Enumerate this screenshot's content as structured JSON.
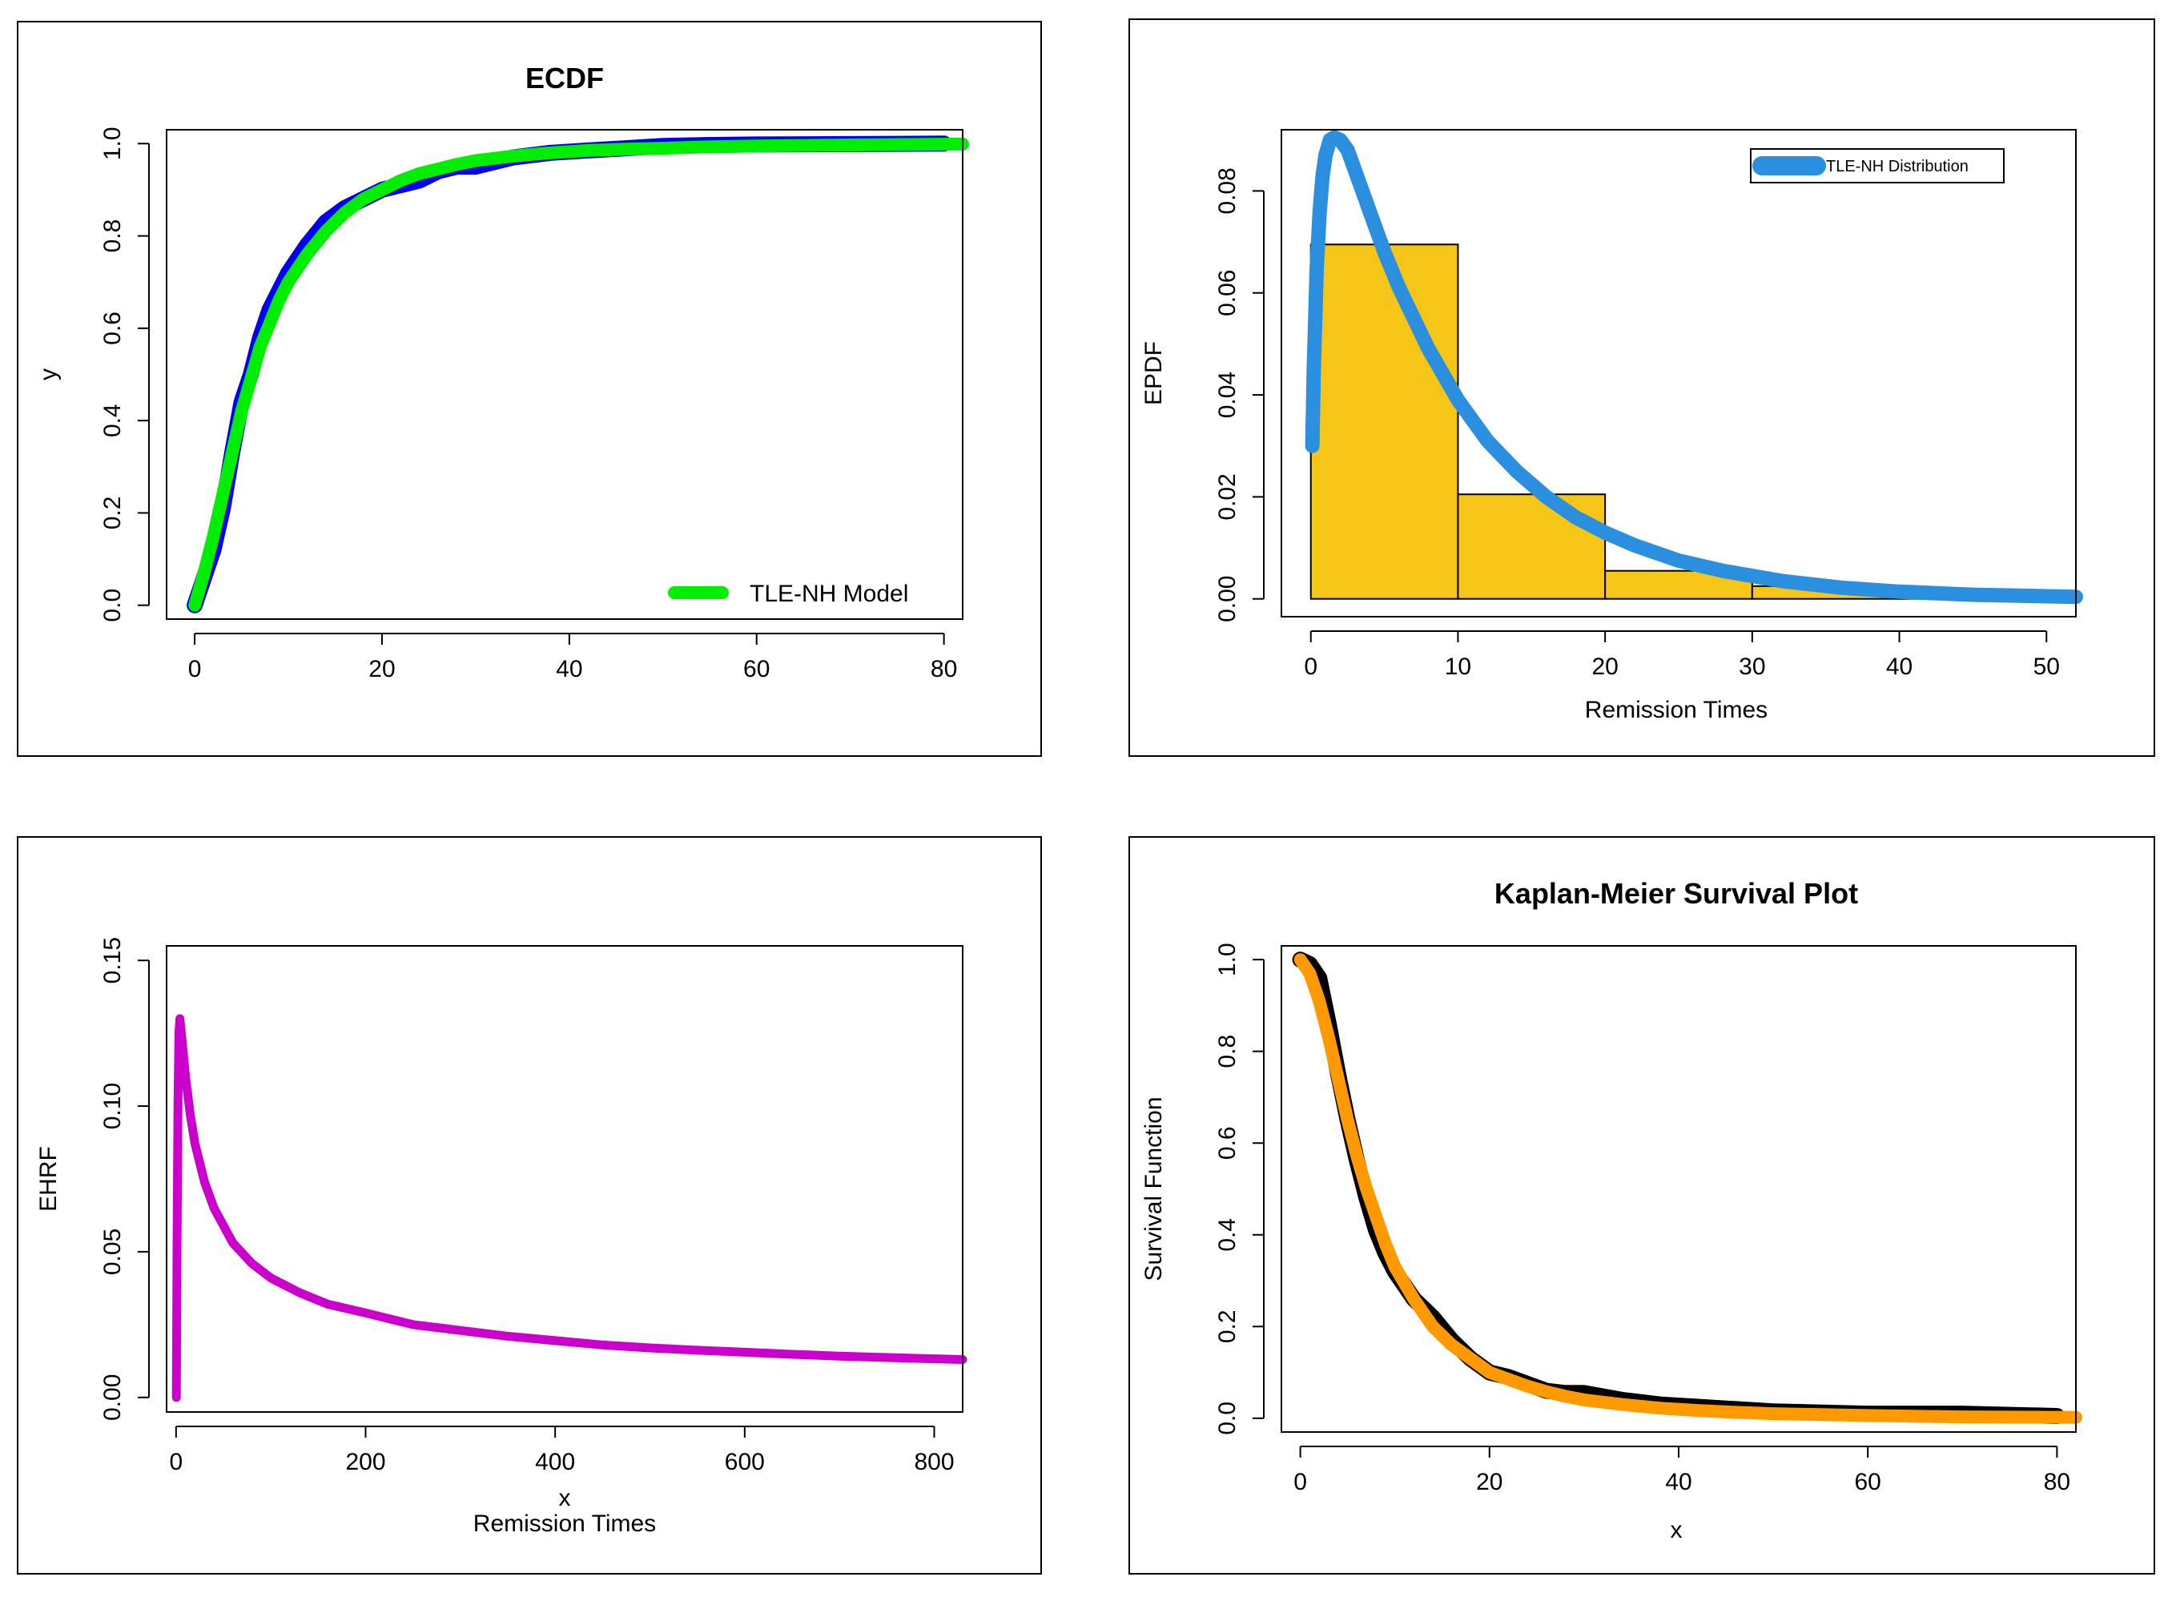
{
  "chart_data": [
    {
      "type": "line",
      "title": "ECDF",
      "xlabel": "",
      "ylabel": "y",
      "xlim": [
        -3,
        82
      ],
      "ylim": [
        -0.03,
        1.03
      ],
      "xticks": [
        0,
        20,
        40,
        60,
        80
      ],
      "yticks": [
        0.0,
        0.2,
        0.4,
        0.6,
        0.8,
        1.0
      ],
      "xtick_labels": [
        "0",
        "20",
        "40",
        "60",
        "80"
      ],
      "ytick_labels": [
        "0.0",
        "0.2",
        "0.4",
        "0.6",
        "0.8",
        "1.0"
      ],
      "legend": {
        "position": "bottom-right",
        "entries": [
          "TLE-NH Model"
        ]
      },
      "series": [
        {
          "name": "Empirical CDF",
          "color": "#0000ee",
          "x": [
            0,
            1,
            2,
            3,
            4,
            5,
            6,
            7,
            8,
            9,
            10,
            12,
            14,
            16,
            18,
            20,
            22,
            24,
            26,
            28,
            30,
            34,
            38,
            42,
            46,
            50,
            55,
            60,
            70,
            80
          ],
          "y": [
            0.0,
            0.06,
            0.12,
            0.21,
            0.33,
            0.44,
            0.5,
            0.58,
            0.64,
            0.68,
            0.72,
            0.78,
            0.83,
            0.86,
            0.88,
            0.9,
            0.91,
            0.92,
            0.94,
            0.95,
            0.95,
            0.97,
            0.98,
            0.985,
            0.99,
            0.995,
            0.997,
            0.998,
            0.999,
            1.0
          ]
        },
        {
          "name": "TLE-NH Model",
          "color": "#00ee00",
          "x": [
            0,
            1,
            2,
            3,
            4,
            5,
            6,
            7,
            8,
            9,
            10,
            12,
            14,
            16,
            18,
            20,
            22,
            24,
            26,
            28,
            30,
            34,
            38,
            42,
            46,
            50,
            55,
            60,
            70,
            82
          ],
          "y": [
            0.0,
            0.07,
            0.15,
            0.24,
            0.33,
            0.42,
            0.49,
            0.56,
            0.61,
            0.66,
            0.7,
            0.76,
            0.81,
            0.85,
            0.88,
            0.9,
            0.92,
            0.935,
            0.945,
            0.955,
            0.963,
            0.973,
            0.98,
            0.985,
            0.988,
            0.99,
            0.993,
            0.995,
            0.997,
            0.999
          ]
        }
      ]
    },
    {
      "type": "bar",
      "title": "",
      "xlabel": "Remission Times",
      "ylabel": "EPDF",
      "xlim": [
        -2,
        52
      ],
      "ylim": [
        -0.0035,
        0.092
      ],
      "xticks": [
        0,
        10,
        20,
        30,
        40,
        50
      ],
      "yticks": [
        0.0,
        0.02,
        0.04,
        0.06,
        0.08
      ],
      "xtick_labels": [
        "0",
        "10",
        "20",
        "30",
        "40",
        "50"
      ],
      "ytick_labels": [
        "0.00",
        "0.02",
        "0.04",
        "0.06",
        "0.08"
      ],
      "legend": {
        "position": "top-right",
        "entries": [
          "TLE-NH Distribution"
        ]
      },
      "histogram": {
        "color": "#f5c518",
        "bins": [
          {
            "from": 0,
            "to": 10,
            "density": 0.0695
          },
          {
            "from": 10,
            "to": 20,
            "density": 0.0205
          },
          {
            "from": 20,
            "to": 30,
            "density": 0.0055
          },
          {
            "from": 30,
            "to": 40,
            "density": 0.0025
          },
          {
            "from": 40,
            "to": 50,
            "density": 0.0005
          }
        ]
      },
      "series": [
        {
          "name": "TLE-NH Distribution",
          "color": "#2b8fe0",
          "x": [
            0.1,
            0.2,
            0.4,
            0.6,
            0.8,
            1.0,
            1.3,
            1.6,
            2.0,
            2.5,
            3,
            4,
            5,
            6,
            8,
            10,
            12,
            14,
            16,
            18,
            20,
            22,
            25,
            28,
            32,
            36,
            40,
            45,
            52
          ],
          "y": [
            0.03,
            0.045,
            0.065,
            0.076,
            0.083,
            0.087,
            0.09,
            0.0905,
            0.09,
            0.088,
            0.084,
            0.076,
            0.068,
            0.061,
            0.049,
            0.039,
            0.031,
            0.025,
            0.02,
            0.016,
            0.013,
            0.0105,
            0.0075,
            0.0055,
            0.0035,
            0.0022,
            0.0014,
            0.0008,
            0.0004
          ]
        }
      ]
    },
    {
      "type": "line",
      "title": "",
      "xlabel": "x",
      "xlabel2": "Remission Times",
      "ylabel": "EHRF",
      "xlim": [
        -10,
        830
      ],
      "ylim": [
        -0.005,
        0.155
      ],
      "xticks": [
        0,
        200,
        400,
        600,
        800
      ],
      "yticks": [
        0.0,
        0.05,
        0.1,
        0.15
      ],
      "xtick_labels": [
        "0",
        "200",
        "400",
        "600",
        "800"
      ],
      "ytick_labels": [
        "0.00",
        "0.05",
        "0.10",
        "0.15"
      ],
      "series": [
        {
          "name": "EHRF",
          "color": "#cc00cc",
          "x": [
            0.3,
            1,
            2,
            3,
            4,
            6,
            10,
            15,
            20,
            30,
            40,
            60,
            80,
            100,
            130,
            160,
            200,
            250,
            300,
            350,
            400,
            450,
            500,
            550,
            600,
            650,
            700,
            750,
            830
          ],
          "y": [
            0.0,
            0.05,
            0.1,
            0.125,
            0.13,
            0.124,
            0.11,
            0.097,
            0.087,
            0.074,
            0.065,
            0.053,
            0.046,
            0.041,
            0.036,
            0.032,
            0.029,
            0.025,
            0.023,
            0.021,
            0.0195,
            0.018,
            0.017,
            0.0162,
            0.0155,
            0.0148,
            0.0142,
            0.0137,
            0.013
          ]
        }
      ]
    },
    {
      "type": "line",
      "title": "Kaplan-Meier Survival Plot",
      "xlabel": "x",
      "ylabel": "Survival  Function",
      "xlim": [
        -2,
        82
      ],
      "ylim": [
        -0.03,
        1.03
      ],
      "xticks": [
        0,
        20,
        40,
        60,
        80
      ],
      "yticks": [
        0.0,
        0.2,
        0.4,
        0.6,
        0.8,
        1.0
      ],
      "xtick_labels": [
        "0",
        "20",
        "40",
        "60",
        "80"
      ],
      "ytick_labels": [
        "0.0",
        "0.2",
        "0.4",
        "0.6",
        "0.8",
        "1.0"
      ],
      "series": [
        {
          "name": "Kaplan-Meier",
          "color": "#000000",
          "x": [
            0,
            1,
            2,
            3,
            4,
            5,
            6,
            7,
            8,
            9,
            10,
            12,
            14,
            16,
            18,
            20,
            22,
            24,
            26,
            28,
            30,
            34,
            38,
            42,
            46,
            50,
            60,
            70,
            80
          ],
          "y": [
            1.0,
            0.99,
            0.96,
            0.86,
            0.75,
            0.65,
            0.56,
            0.48,
            0.41,
            0.36,
            0.32,
            0.26,
            0.22,
            0.17,
            0.13,
            0.1,
            0.09,
            0.075,
            0.06,
            0.055,
            0.055,
            0.04,
            0.03,
            0.025,
            0.02,
            0.015,
            0.01,
            0.01,
            0.005
          ]
        },
        {
          "name": "Model survival",
          "color": "#ff9900",
          "x": [
            0,
            1,
            2,
            3,
            4,
            5,
            6,
            7,
            8,
            9,
            10,
            12,
            14,
            16,
            18,
            20,
            22,
            24,
            26,
            28,
            30,
            34,
            38,
            42,
            46,
            50,
            60,
            70,
            82
          ],
          "y": [
            1.0,
            0.97,
            0.91,
            0.83,
            0.74,
            0.65,
            0.57,
            0.5,
            0.44,
            0.38,
            0.33,
            0.26,
            0.2,
            0.16,
            0.13,
            0.1,
            0.085,
            0.07,
            0.058,
            0.048,
            0.04,
            0.03,
            0.022,
            0.017,
            0.013,
            0.01,
            0.006,
            0.003,
            0.002
          ]
        }
      ]
    }
  ]
}
